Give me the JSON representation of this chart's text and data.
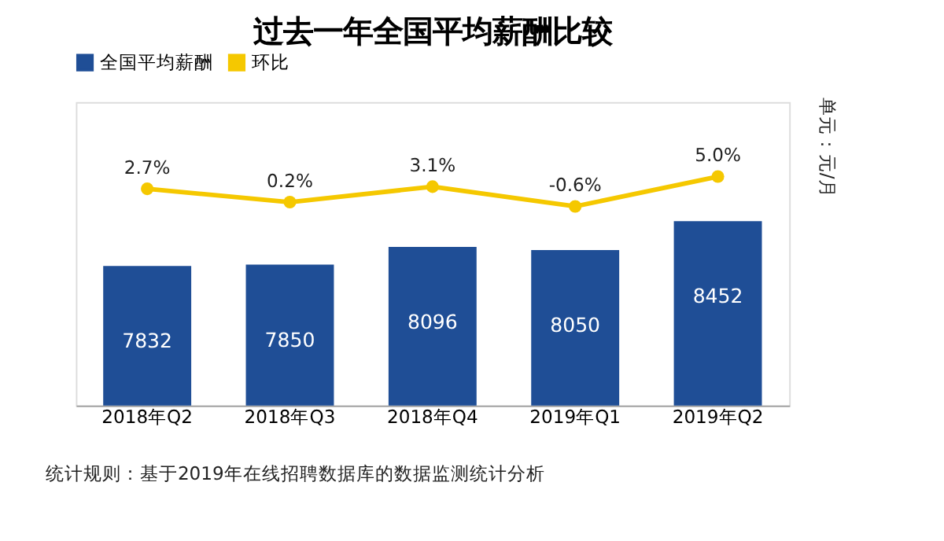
{
  "chart_data": {
    "type": "bar",
    "title": "过去一年全国平均薪酬比较",
    "categories": [
      "2018年Q2",
      "2018年Q3",
      "2018年Q4",
      "2019年Q1",
      "2019年Q2"
    ],
    "series": [
      {
        "name": "全国平均薪酬",
        "color": "#1f4e96",
        "values": [
          7832,
          7850,
          8096,
          8050,
          8452
        ],
        "value_labels": [
          "7832",
          "7850",
          "8096",
          "8050",
          "8452"
        ]
      },
      {
        "name": "环比",
        "type": "line",
        "axis": "y2",
        "color": "#f5c800",
        "marker": "circle",
        "values": [
          2.7,
          0.2,
          3.1,
          -0.6,
          5.0
        ],
        "value_labels": [
          "2.7%",
          "0.2%",
          "3.1%",
          "-0.6%",
          "5.0%"
        ]
      }
    ],
    "ylim": [
      5900,
      10100
    ],
    "y2lim": [
      -38,
      19
    ],
    "legend": "top",
    "tick_labels": "x",
    "annotations": [
      "单元：元/月",
      "统计规则：基于2019年在线招聘数据库的数据监测统计分析"
    ]
  }
}
